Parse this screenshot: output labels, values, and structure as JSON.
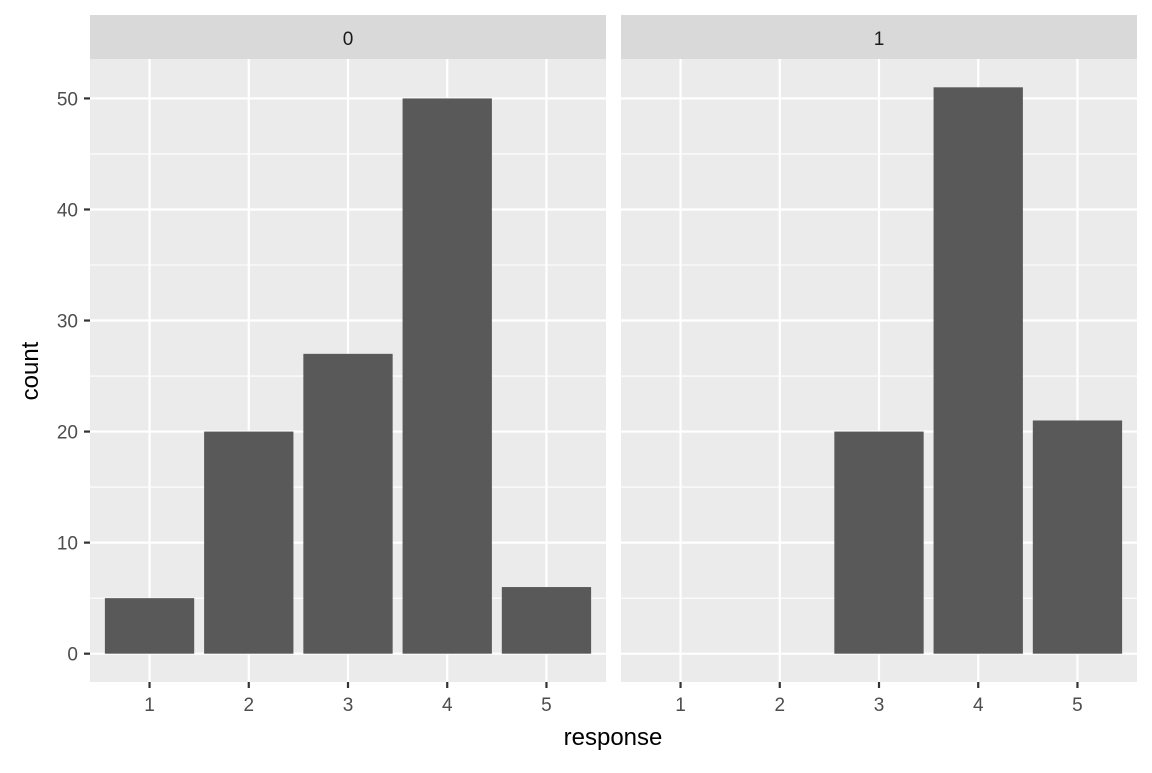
{
  "chart_data": {
    "type": "bar",
    "facet_type": "facet_wrap",
    "categories": [
      "1",
      "2",
      "3",
      "4",
      "5"
    ],
    "ylim": [
      -2.55,
      53.55
    ],
    "y_ticks": [
      0,
      10,
      20,
      30,
      40,
      50
    ],
    "grid": true,
    "xlabel": "response",
    "ylabel": "count",
    "bar_color": "#595959",
    "panel_bg": "#ebebeb",
    "strip_bg": "#d9d9d9",
    "grid_color": "#ffffff",
    "panels": [
      {
        "label": "0",
        "values": [
          5,
          20,
          27,
          50,
          6
        ]
      },
      {
        "label": "1",
        "values": [
          0,
          0,
          20,
          51,
          21
        ]
      }
    ]
  }
}
